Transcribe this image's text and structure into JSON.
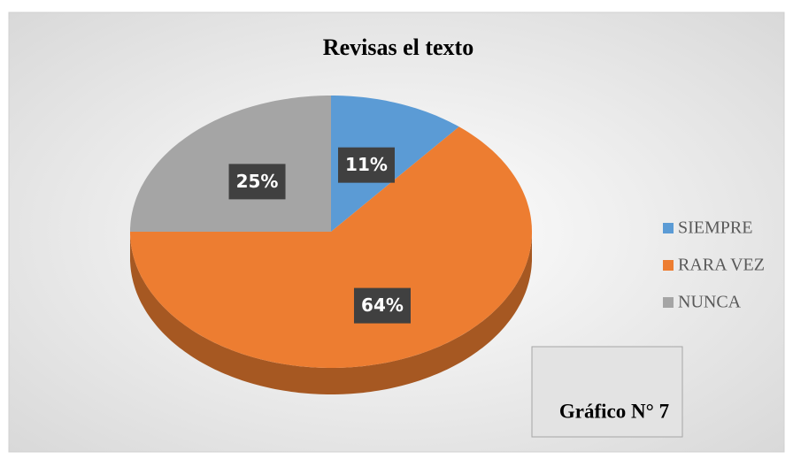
{
  "chart_data": {
    "type": "pie",
    "title": "Revisas el texto",
    "categories": [
      "SIEMPRE",
      "RARA VEZ",
      "NUNCA"
    ],
    "values": [
      11,
      64,
      25
    ],
    "value_labels": [
      "11%",
      "64%",
      "25%"
    ],
    "colors": [
      "#5b9bd5",
      "#ed7d31",
      "#a5a5a5"
    ],
    "legend": "right",
    "annotation": "Gráfico N° 7"
  }
}
